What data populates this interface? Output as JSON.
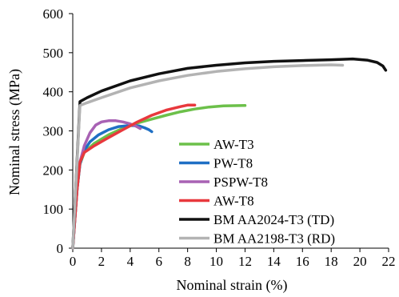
{
  "chart_data": {
    "type": "line",
    "title": "",
    "xlabel": "Nominal strain (%)",
    "ylabel": "Nominal stress (MPa)",
    "xlim": [
      0,
      22
    ],
    "ylim": [
      0,
      600
    ],
    "xticks": [
      "0",
      "2",
      "4",
      "6",
      "8",
      "10",
      "12",
      "14",
      "16",
      "18",
      "20",
      "22"
    ],
    "yticks": [
      "0",
      "100",
      "200",
      "300",
      "400",
      "500",
      "600"
    ],
    "grid": false,
    "legend": "center-right",
    "series": [
      {
        "name": "AW-T3",
        "color": "#6cc04a",
        "points": [
          [
            0,
            0
          ],
          [
            0.3,
            150
          ],
          [
            0.5,
            215
          ],
          [
            0.8,
            245
          ],
          [
            1.5,
            268
          ],
          [
            2.5,
            290
          ],
          [
            3.5,
            307
          ],
          [
            4.5,
            320
          ],
          [
            5.5,
            330
          ],
          [
            6.5,
            340
          ],
          [
            7.5,
            349
          ],
          [
            8.5,
            356
          ],
          [
            9.5,
            361
          ],
          [
            10.5,
            364
          ],
          [
            12,
            365
          ]
        ]
      },
      {
        "name": "PW-T8",
        "color": "#1f6fc4",
        "points": [
          [
            0,
            0
          ],
          [
            0.3,
            150
          ],
          [
            0.5,
            215
          ],
          [
            0.8,
            250
          ],
          [
            1.2,
            272
          ],
          [
            1.8,
            290
          ],
          [
            2.5,
            303
          ],
          [
            3.2,
            311
          ],
          [
            4,
            314
          ],
          [
            4.6,
            313
          ],
          [
            5,
            308
          ],
          [
            5.3,
            303
          ],
          [
            5.5,
            298
          ]
        ]
      },
      {
        "name": "PSPW-T8",
        "color": "#a862b4",
        "points": [
          [
            0,
            0
          ],
          [
            0.3,
            150
          ],
          [
            0.5,
            220
          ],
          [
            0.8,
            262
          ],
          [
            1.2,
            295
          ],
          [
            1.6,
            315
          ],
          [
            2,
            323
          ],
          [
            2.5,
            326
          ],
          [
            3,
            326
          ],
          [
            3.5,
            323
          ],
          [
            4,
            318
          ],
          [
            4.4,
            312
          ],
          [
            4.7,
            306
          ]
        ]
      },
      {
        "name": "AW-T8",
        "color": "#e8383d",
        "points": [
          [
            0,
            0
          ],
          [
            0.3,
            150
          ],
          [
            0.5,
            220
          ],
          [
            0.8,
            245
          ],
          [
            1.5,
            262
          ],
          [
            2.5,
            283
          ],
          [
            3.5,
            303
          ],
          [
            4.5,
            323
          ],
          [
            5.5,
            340
          ],
          [
            6.5,
            353
          ],
          [
            7.5,
            362
          ],
          [
            8,
            366
          ],
          [
            8.5,
            366
          ]
        ]
      },
      {
        "name": "BM AA2024-T3 (TD)",
        "color": "#111111",
        "points": [
          [
            0,
            0
          ],
          [
            0.5,
            375
          ],
          [
            1,
            385
          ],
          [
            2,
            402
          ],
          [
            4,
            428
          ],
          [
            6,
            446
          ],
          [
            8,
            460
          ],
          [
            10,
            468
          ],
          [
            12,
            474
          ],
          [
            14,
            478
          ],
          [
            16,
            480
          ],
          [
            18,
            482
          ],
          [
            19.5,
            484
          ],
          [
            20.5,
            481
          ],
          [
            21.2,
            475
          ],
          [
            21.6,
            466
          ],
          [
            21.8,
            455
          ]
        ]
      },
      {
        "name": "BM AA2198-T3 (RD)",
        "color": "#b3b3b3",
        "points": [
          [
            0,
            0
          ],
          [
            0.5,
            365
          ],
          [
            1,
            372
          ],
          [
            2,
            385
          ],
          [
            4,
            410
          ],
          [
            6,
            428
          ],
          [
            8,
            442
          ],
          [
            10,
            452
          ],
          [
            12,
            459
          ],
          [
            14,
            464
          ],
          [
            16,
            467
          ],
          [
            18,
            469
          ],
          [
            18.8,
            468
          ]
        ]
      }
    ]
  }
}
